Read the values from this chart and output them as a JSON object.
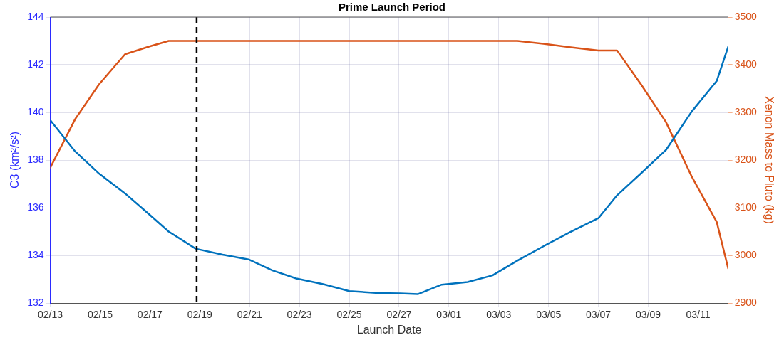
{
  "chart_data": {
    "type": "line",
    "title": "Prime Launch Period",
    "xlabel": "Launch Date",
    "ylabel": "C3 (km²/s²)",
    "y2label": "Xenon Mass to Pluto (kg)",
    "x": [
      "--02-13T00:00",
      "--02-14T00:00",
      "--02-14T23:00",
      "--02-16T00:00",
      "--02-16T23:00",
      "--02-17T18:00",
      "--02-18T20:00",
      "--02-19T22:00",
      "--02-20T23:00",
      "--02-21T22:00",
      "--02-22T21:00",
      "--02-23T23:00",
      "--02-25T00:00",
      "--02-26T04:00",
      "--02-27T01:00",
      "--02-27T18:00",
      "--02-28T17:00",
      "--03-01T18:00",
      "--03-02T18:00",
      "--03-03T18:00",
      "--03-04T19:00",
      "--03-05T20:00",
      "--03-07T00:00",
      "--03-07T18:00",
      "--03-08T17:00",
      "--03-09T17:00",
      "--03-10T18:00",
      "--03-11T18:00",
      "--03-12T05:00"
    ],
    "series": [
      {
        "color": "#0072bd",
        "values": [
          139.67,
          138.36,
          137.43,
          136.6,
          135.73,
          135.0,
          134.28,
          134.03,
          133.83,
          133.37,
          133.03,
          132.79,
          132.5,
          132.42,
          132.4,
          132.37,
          132.77,
          132.88,
          133.16,
          133.78,
          134.38,
          134.96,
          135.56,
          136.52,
          137.44,
          138.42,
          140.04,
          141.32,
          142.75
        ]
      },
      {
        "color": "#d95319",
        "axis": "y2",
        "values": [
          3184,
          3286,
          3359,
          3422,
          3438,
          3450,
          3450,
          3450,
          3450,
          3450,
          3450,
          3450,
          3450,
          3450,
          3450,
          3450,
          3450,
          3450,
          3450,
          3450,
          3444,
          3437,
          3430,
          3430,
          3359,
          3280,
          3165,
          3070,
          2973
        ]
      }
    ],
    "xlim": [
      "--02-13T00:00",
      "--03-12T05:00"
    ],
    "xticks": [
      {
        "value": "--02-13",
        "label": "02/13"
      },
      {
        "value": "--02-15",
        "label": "02/15"
      },
      {
        "value": "--02-17",
        "label": "02/17"
      },
      {
        "value": "--02-19",
        "label": "02/19"
      },
      {
        "value": "--02-21",
        "label": "02/21"
      },
      {
        "value": "--02-23",
        "label": "02/23"
      },
      {
        "value": "--02-25",
        "label": "02/25"
      },
      {
        "value": "--02-27",
        "label": "02/27"
      },
      {
        "value": "--03-01",
        "label": "03/01"
      },
      {
        "value": "--03-03",
        "label": "03/03"
      },
      {
        "value": "--03-05",
        "label": "03/05"
      },
      {
        "value": "--03-07",
        "label": "03/07"
      },
      {
        "value": "--03-09",
        "label": "03/09"
      },
      {
        "value": "--03-11",
        "label": "03/11"
      }
    ],
    "ylim": [
      132,
      144
    ],
    "yticks": [
      132,
      134,
      136,
      138,
      140,
      142,
      144
    ],
    "y2lim": [
      2900,
      3500
    ],
    "y2ticks": [
      2900,
      3000,
      3100,
      3200,
      3300,
      3400,
      3500
    ],
    "ref_lines": [
      {
        "axis": "x",
        "value": "--02-18T21:00",
        "color": "#000000",
        "line_style": "dashed"
      }
    ],
    "grid": true,
    "legend": false,
    "marker": "none",
    "line_style": "solid"
  }
}
